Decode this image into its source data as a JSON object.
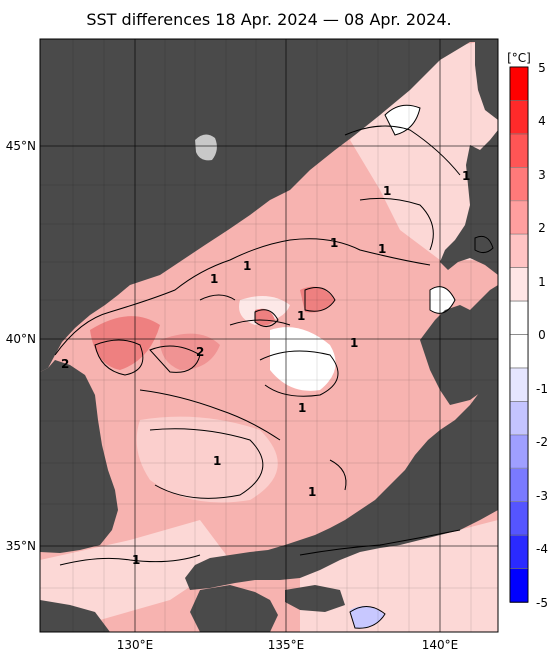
{
  "title": "SST differences 18 Apr. 2024 — 08 Apr. 2024.",
  "map": {
    "lat_labels": [
      "45°N",
      "40°N",
      "35°N"
    ],
    "lon_labels": [
      "130°E",
      "135°E",
      "140°E"
    ],
    "contour_labels": [
      "1",
      "1",
      "1",
      "1",
      "1",
      "1",
      "1",
      "1",
      "1",
      "1",
      "1",
      "1",
      "1",
      "2",
      "2"
    ]
  },
  "colorbar": {
    "unit": "[°C]",
    "tick_labels": [
      "5",
      "4",
      "3",
      "2",
      "1",
      "0",
      "-1",
      "-2",
      "-3",
      "-4",
      "-5"
    ],
    "colors": [
      "#ff0000",
      "#ff2a2a",
      "#ff5555",
      "#ff7a7a",
      "#ff9f9f",
      "#ffc4c4",
      "#ffe6e6",
      "#ffffff",
      "#ffffff",
      "#e6e6ff",
      "#c4c4ff",
      "#9f9fff",
      "#7a7aff",
      "#5555ff",
      "#2a2aff",
      "#0000ff"
    ]
  }
}
